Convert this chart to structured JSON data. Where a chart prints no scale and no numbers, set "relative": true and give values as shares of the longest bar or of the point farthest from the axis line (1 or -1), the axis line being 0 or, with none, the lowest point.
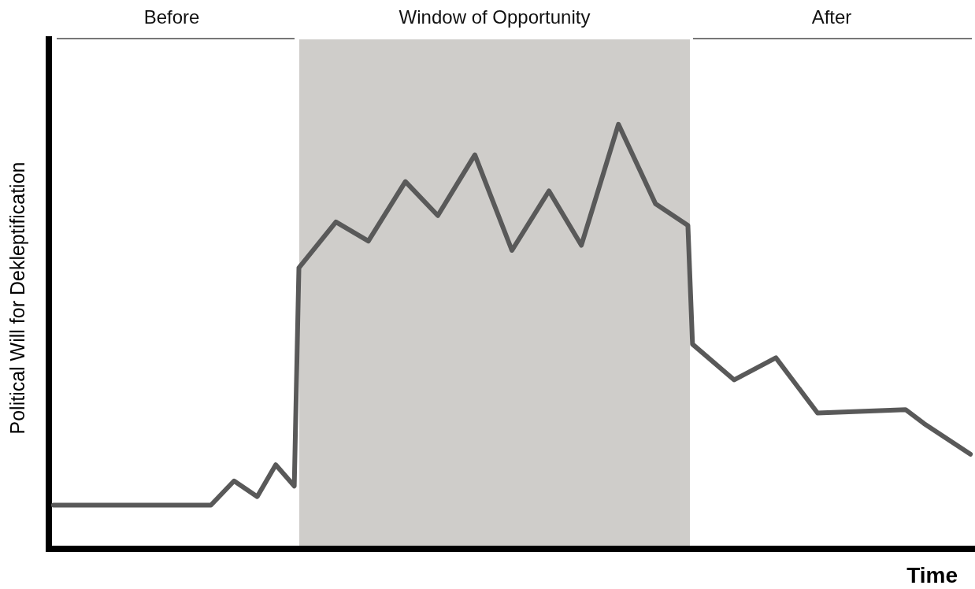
{
  "chart_data": {
    "type": "line",
    "relative": true,
    "xlabel": "Time",
    "ylabel": "Political Will for Dekleptification",
    "marker": "none",
    "line_style": "solid",
    "annotations": [
      "Before",
      "Window of Opportunity",
      "After"
    ],
    "categories": [
      null,
      null,
      null,
      null,
      null,
      null,
      null,
      null,
      null,
      null,
      null,
      null,
      null,
      null,
      null,
      null,
      null,
      null,
      null,
      null,
      null,
      null,
      null,
      null,
      null,
      null,
      null,
      null,
      null,
      null,
      null,
      null,
      null,
      null,
      null,
      null,
      null,
      null,
      null,
      null,
      null,
      null,
      null,
      null,
      null,
      null,
      null,
      null,
      null,
      null,
      null,
      null,
      null,
      null,
      null,
      null,
      null,
      null,
      null,
      null,
      null,
      null,
      null,
      null,
      null,
      null,
      null,
      null,
      null,
      null,
      null,
      null,
      null,
      null,
      null,
      null,
      null,
      null,
      null,
      null,
      null,
      null,
      null,
      null,
      null,
      null,
      null,
      null,
      null,
      null,
      null,
      null,
      null,
      null,
      null,
      null,
      null,
      null,
      null,
      null,
      null,
      null,
      null,
      null,
      null,
      null,
      null,
      null,
      null,
      null,
      null,
      null,
      null,
      null,
      null,
      null,
      null,
      null,
      null,
      null,
      null,
      null,
      null,
      null,
      null,
      null,
      null,
      null,
      null,
      null,
      null,
      null,
      null,
      null,
      null,
      null,
      null,
      null,
      null,
      null,
      null,
      null,
      null,
      null,
      null,
      null,
      null,
      null,
      null,
      null,
      null,
      null,
      null,
      null,
      null,
      null,
      null,
      null,
      null,
      null,
      null,
      null,
      null,
      null,
      null,
      null,
      null,
      null,
      null,
      null,
      null,
      null,
      null,
      null,
      null,
      null,
      null,
      null,
      null,
      null,
      null,
      null,
      null,
      null,
      null,
      null,
      null,
      null,
      null,
      null,
      null,
      null,
      null,
      null,
      null,
      null,
      null,
      null,
      null,
      null,
      null
    ],
    "series": [
      {
        "color": "#595959",
        "values": [
          null,
          0.103,
          null,
          null,
          null,
          null,
          null,
          null,
          null,
          null,
          null,
          null,
          null,
          null,
          null,
          null,
          null,
          null,
          null,
          null,
          null,
          null,
          null,
          null,
          null,
          null,
          null,
          null,
          null,
          null,
          null,
          null,
          null,
          null,
          null,
          0.103,
          null,
          null,
          null,
          null,
          0.16,
          null,
          null,
          null,
          null,
          0.123,
          null,
          null,
          null,
          0.198,
          null,
          null,
          null,
          0.148,
          0.662,
          null,
          null,
          null,
          null,
          null,
          null,
          null,
          0.77,
          null,
          null,
          null,
          null,
          null,
          null,
          0.725,
          null,
          null,
          null,
          null,
          null,
          null,
          null,
          0.865,
          null,
          null,
          null,
          null,
          null,
          null,
          0.785,
          null,
          null,
          null,
          null,
          null,
          null,
          null,
          0.928,
          null,
          null,
          null,
          null,
          null,
          null,
          null,
          0.703,
          null,
          null,
          null,
          null,
          null,
          null,
          null,
          0.843,
          null,
          null,
          null,
          null,
          null,
          null,
          0.715,
          null,
          null,
          null,
          null,
          null,
          null,
          null,
          1,
          null,
          null,
          null,
          null,
          null,
          null,
          null,
          0.813,
          null,
          null,
          null,
          null,
          null,
          null,
          0.762,
          0.482,
          null,
          null,
          null,
          null,
          null,
          null,
          null,
          null,
          0.398,
          null,
          null,
          null,
          null,
          null,
          null,
          null,
          null,
          0.45,
          null,
          null,
          null,
          null,
          null,
          null,
          null,
          null,
          0.32,
          null,
          null,
          null,
          null,
          null,
          null,
          null,
          null,
          null,
          null,
          null,
          null,
          null,
          null,
          null,
          null,
          null,
          null,
          0.328,
          null,
          null,
          null,
          0.295,
          null,
          null,
          null,
          null,
          null,
          null,
          null,
          null,
          null,
          0.223,
          null
        ]
      }
    ]
  }
}
